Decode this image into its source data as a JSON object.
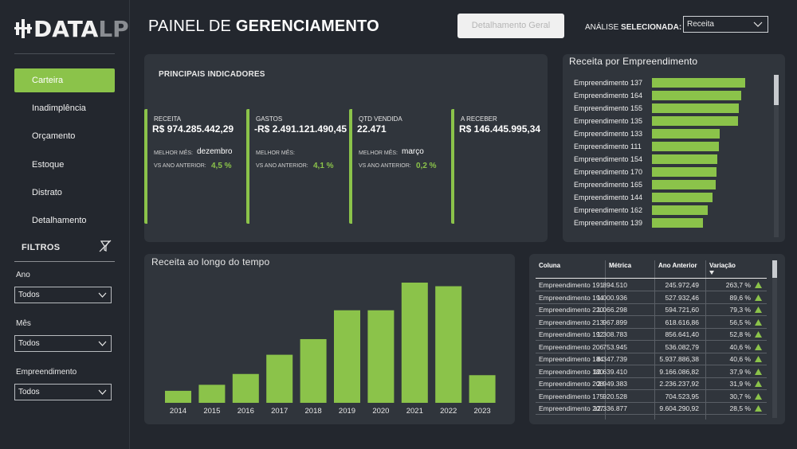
{
  "logo": {
    "main": "DATA",
    "suffix": "LP"
  },
  "header": {
    "title_light": "PAINEL DE ",
    "title_bold": "GERENCIAMENTO",
    "detail_button": "Detalhamento Geral",
    "analysis_label": "ANÁLISE ",
    "analysis_label_bold": "SELECIONADA:",
    "analysis_value": "Receita"
  },
  "sidebar": {
    "items": [
      {
        "label": "Carteira",
        "active": true
      },
      {
        "label": "Inadimplência",
        "active": false
      },
      {
        "label": "Orçamento",
        "active": false
      },
      {
        "label": "Estoque",
        "active": false
      },
      {
        "label": "Distrato",
        "active": false
      },
      {
        "label": "Detalhamento",
        "active": false
      }
    ],
    "filters_title": "FILTROS",
    "filters": [
      {
        "label": "Ano",
        "value": "Todos"
      },
      {
        "label": "Mês",
        "value": "Todos"
      },
      {
        "label": "Empreendimento",
        "value": "Todos"
      }
    ]
  },
  "kpis": {
    "title": "PRINCIPAIS INDICADORES",
    "items": [
      {
        "label": "RECEITA",
        "value": "R$ 974.285.442,29",
        "best_label": "MELHOR MÊS:",
        "best": "dezembro",
        "vs_label": "VS ANO ANTERIOR:",
        "vs": "4,5 %"
      },
      {
        "label": "GASTOS",
        "value": "-R$ 2.491.121.490,45",
        "best_label": "MELHOR MÊS:",
        "best": "",
        "vs_label": "VS ANO ANTERIOR:",
        "vs": "4,1 %"
      },
      {
        "label": "QTD VENDIDA",
        "value": "22.471",
        "best_label": "MELHOR MÊS:",
        "best": "março",
        "vs_label": "VS ANO ANTERIOR:",
        "vs": "0,2 %"
      },
      {
        "label": "A RECEBER",
        "value": "R$ 146.445.995,34",
        "best_label": "",
        "best": "",
        "vs_label": "",
        "vs": ""
      }
    ]
  },
  "revenue_by_project": {
    "title": "Receita por Empreendimento",
    "accent": "#8bc34a",
    "items": [
      {
        "name": "Empreendimento 137",
        "value": 100
      },
      {
        "name": "Empreendimento 164",
        "value": 96
      },
      {
        "name": "Empreendimento 155",
        "value": 93
      },
      {
        "name": "Empreendimento 135",
        "value": 92
      },
      {
        "name": "Empreendimento 133",
        "value": 73
      },
      {
        "name": "Empreendimento 111",
        "value": 72
      },
      {
        "name": "Empreendimento 154",
        "value": 70
      },
      {
        "name": "Empreendimento 170",
        "value": 69
      },
      {
        "name": "Empreendimento 165",
        "value": 68
      },
      {
        "name": "Empreendimento 144",
        "value": 65
      },
      {
        "name": "Empreendimento 162",
        "value": 60
      },
      {
        "name": "Empreendimento 139",
        "value": 55
      }
    ]
  },
  "chart_data": {
    "type": "bar",
    "title": "Receita ao longo do tempo",
    "categories": [
      "2014",
      "2015",
      "2016",
      "2017",
      "2018",
      "2019",
      "2020",
      "2021",
      "2022",
      "2023"
    ],
    "values": [
      10,
      15,
      24,
      40,
      53,
      77,
      77,
      100,
      97,
      23
    ],
    "ylim": [
      0,
      100
    ],
    "grid": false,
    "color": "#8bc34a"
  },
  "table": {
    "columns": [
      "Coluna",
      "Métrica",
      "Ano Anterior",
      "Variação"
    ],
    "rows": [
      [
        "Empreendimento 191",
        "894.510",
        "245.972,49",
        "263,7 %"
      ],
      [
        "Empreendimento 194",
        "1.000.936",
        "527.932,46",
        "89,6 %"
      ],
      [
        "Empreendimento 220",
        "1.066.298",
        "594.721,60",
        "79,3 %"
      ],
      [
        "Empreendimento 213",
        "967.899",
        "618.616,86",
        "56,5 %"
      ],
      [
        "Empreendimento 192",
        "1.308.783",
        "856.641,40",
        "52,8 %"
      ],
      [
        "Empreendimento 206",
        "753.945",
        "536.082,79",
        "40,6 %"
      ],
      [
        "Empreendimento 184",
        "8.347.739",
        "5.937.886,38",
        "40,6 %"
      ],
      [
        "Empreendimento 180",
        "12.639.410",
        "9.166.086,82",
        "37,9 %"
      ],
      [
        "Empreendimento 208",
        "2.949.383",
        "2.236.237,92",
        "31,9 %"
      ],
      [
        "Empreendimento 175",
        "920.528",
        "704.523,95",
        "30,7 %"
      ],
      [
        "Empreendimento 207",
        "12.336.877",
        "9.604.290,92",
        "28,5 %"
      ]
    ]
  }
}
